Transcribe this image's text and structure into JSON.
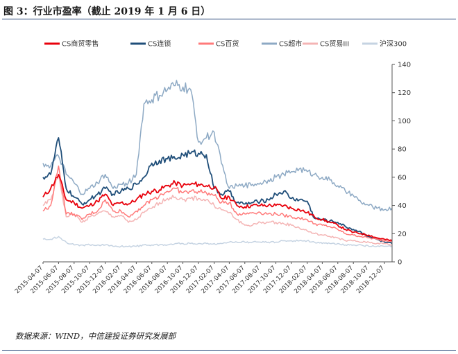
{
  "header": {
    "title": "图 3：行业市盈率（截止 2019 年 1 月 6 日）"
  },
  "footer": {
    "source": "数据来源：WIND，中信建投证券研究发展部"
  },
  "chart_data": {
    "type": "line",
    "title": "",
    "xlabel": "",
    "ylabel": "",
    "ylim": [
      0,
      140
    ],
    "yticks": [
      0,
      20,
      40,
      60,
      80,
      100,
      120,
      140
    ],
    "y_axis_side": "right",
    "legend_position": "top",
    "grid": false,
    "x_tick_labels": [
      "2015-04-07",
      "2015-06-07",
      "2015-08-07",
      "2015-10-07",
      "2015-12-07",
      "2016-02-07",
      "2016-04-07",
      "2016-06-07",
      "2016-08-07",
      "2016-10-07",
      "2016-12-07",
      "2017-02-07",
      "2017-04-07",
      "2017-06-07",
      "2017-08-07",
      "2017-10-07",
      "2017-12-07",
      "2018-02-07",
      "2018-04-07",
      "2018-06-07",
      "2018-08-07",
      "2018-10-07",
      "2018-12-07"
    ],
    "x": [
      "2015-04-07",
      "2015-05-07",
      "2015-06-07",
      "2015-07-07",
      "2015-08-07",
      "2015-09-07",
      "2015-10-07",
      "2015-11-07",
      "2015-12-07",
      "2016-01-07",
      "2016-02-07",
      "2016-03-07",
      "2016-04-07",
      "2016-05-07",
      "2016-06-07",
      "2016-07-07",
      "2016-08-07",
      "2016-09-07",
      "2016-10-07",
      "2016-11-07",
      "2016-12-07",
      "2017-01-07",
      "2017-02-07",
      "2017-03-07",
      "2017-04-07",
      "2017-05-07",
      "2017-06-07",
      "2017-07-07",
      "2017-08-07",
      "2017-09-07",
      "2017-10-07",
      "2017-11-07",
      "2017-12-07",
      "2018-01-07",
      "2018-02-07",
      "2018-03-07",
      "2018-04-07",
      "2018-05-07",
      "2018-06-07",
      "2018-07-07",
      "2018-08-07",
      "2018-09-07",
      "2018-10-07",
      "2018-11-07",
      "2018-12-07",
      "2019-01-06"
    ],
    "series": [
      {
        "name": "CS商贸零售",
        "color": "#e8000b",
        "values": [
          46,
          52,
          62,
          44,
          42,
          38,
          40,
          43,
          48,
          40,
          42,
          41,
          44,
          48,
          50,
          51,
          54,
          56,
          54,
          55,
          55,
          54,
          53,
          45,
          46,
          40,
          39,
          40,
          40,
          40,
          40,
          40,
          38,
          37,
          35,
          32,
          30,
          28,
          26,
          23,
          21,
          20,
          19,
          17,
          16,
          15
        ]
      },
      {
        "name": "CS连锁",
        "color": "#1f4e79",
        "values": [
          60,
          62,
          88,
          52,
          46,
          41,
          44,
          48,
          52,
          48,
          50,
          52,
          55,
          60,
          70,
          72,
          73,
          73,
          76,
          77,
          77,
          76,
          52,
          48,
          50,
          42,
          41,
          42,
          43,
          44,
          48,
          50,
          45,
          44,
          43,
          31,
          30,
          29,
          28,
          25,
          23,
          21,
          18,
          16,
          14,
          13
        ]
      },
      {
        "name": "CS百货",
        "color": "#ff7a7a",
        "values": [
          36,
          40,
          68,
          34,
          34,
          30,
          34,
          36,
          44,
          36,
          36,
          32,
          36,
          40,
          44,
          47,
          50,
          52,
          49,
          50,
          50,
          49,
          47,
          42,
          42,
          34,
          34,
          35,
          35,
          34,
          34,
          33,
          32,
          31,
          30,
          27,
          26,
          25,
          23,
          20,
          19,
          18,
          17,
          16,
          15,
          15
        ]
      },
      {
        "name": "CS超市",
        "color": "#8da9c4",
        "values": [
          70,
          68,
          75,
          62,
          56,
          48,
          52,
          56,
          62,
          52,
          55,
          56,
          62,
          112,
          115,
          118,
          122,
          125,
          124,
          122,
          85,
          88,
          92,
          70,
          52,
          54,
          54,
          55,
          56,
          58,
          60,
          62,
          64,
          66,
          64,
          62,
          60,
          58,
          54,
          50,
          47,
          42,
          40,
          38,
          37,
          38
        ]
      },
      {
        "name": "CS贸易III",
        "color": "#f4b4b4",
        "values": [
          40,
          44,
          62,
          32,
          34,
          28,
          32,
          34,
          36,
          32,
          33,
          28,
          30,
          35,
          38,
          42,
          45,
          46,
          44,
          45,
          45,
          44,
          40,
          37,
          35,
          30,
          26,
          26,
          28,
          28,
          28,
          27,
          26,
          24,
          22,
          20,
          19,
          18,
          17,
          15,
          15,
          14,
          14,
          13,
          13,
          12
        ]
      },
      {
        "name": "沪深300",
        "color": "#c5d3e2",
        "values": [
          16,
          16,
          18,
          14,
          12,
          12,
          12,
          12,
          12,
          11,
          11,
          11,
          11,
          12,
          12,
          12,
          12,
          13,
          13,
          13,
          13,
          13,
          13,
          13,
          14,
          14,
          14,
          14,
          14,
          14,
          14,
          15,
          15,
          15,
          15,
          14,
          13,
          13,
          13,
          12,
          12,
          12,
          11,
          11,
          11,
          11
        ]
      }
    ]
  }
}
